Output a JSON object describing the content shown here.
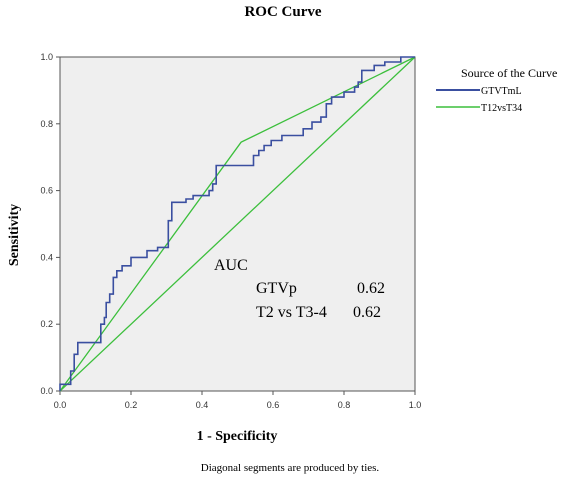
{
  "chart_data": {
    "type": "line",
    "title": "ROC Curve",
    "xlabel": "1 - Specificity",
    "ylabel": "Sensitivity",
    "xlim": [
      0,
      1
    ],
    "ylim": [
      0,
      1
    ],
    "xticks": [
      "0.0",
      "0.2",
      "0.4",
      "0.6",
      "0.8",
      "1.0"
    ],
    "yticks": [
      "0.0",
      "0.2",
      "0.4",
      "0.6",
      "0.8",
      "1.0"
    ],
    "grid": false,
    "legend": {
      "title": "Source of the Curve",
      "placement": "right"
    },
    "series": [
      {
        "name": "GTVTmL",
        "color": "#3a4fa0",
        "points": [
          [
            0,
            0
          ],
          [
            0,
            0.02
          ],
          [
            0.03,
            0.02
          ],
          [
            0.03,
            0.06
          ],
          [
            0.04,
            0.06
          ],
          [
            0.04,
            0.11
          ],
          [
            0.05,
            0.11
          ],
          [
            0.05,
            0.145
          ],
          [
            0.115,
            0.145
          ],
          [
            0.115,
            0.2
          ],
          [
            0.125,
            0.2
          ],
          [
            0.125,
            0.22
          ],
          [
            0.13,
            0.22
          ],
          [
            0.13,
            0.265
          ],
          [
            0.14,
            0.265
          ],
          [
            0.14,
            0.29
          ],
          [
            0.15,
            0.29
          ],
          [
            0.15,
            0.34
          ],
          [
            0.16,
            0.34
          ],
          [
            0.16,
            0.36
          ],
          [
            0.175,
            0.36
          ],
          [
            0.175,
            0.375
          ],
          [
            0.2,
            0.375
          ],
          [
            0.2,
            0.4
          ],
          [
            0.245,
            0.4
          ],
          [
            0.245,
            0.42
          ],
          [
            0.275,
            0.42
          ],
          [
            0.275,
            0.43
          ],
          [
            0.305,
            0.43
          ],
          [
            0.305,
            0.51
          ],
          [
            0.315,
            0.51
          ],
          [
            0.315,
            0.565
          ],
          [
            0.355,
            0.565
          ],
          [
            0.355,
            0.575
          ],
          [
            0.375,
            0.575
          ],
          [
            0.375,
            0.585
          ],
          [
            0.42,
            0.585
          ],
          [
            0.42,
            0.6
          ],
          [
            0.43,
            0.6
          ],
          [
            0.43,
            0.62
          ],
          [
            0.44,
            0.62
          ],
          [
            0.44,
            0.675
          ],
          [
            0.545,
            0.675
          ],
          [
            0.545,
            0.705
          ],
          [
            0.56,
            0.705
          ],
          [
            0.56,
            0.72
          ],
          [
            0.575,
            0.72
          ],
          [
            0.575,
            0.735
          ],
          [
            0.595,
            0.735
          ],
          [
            0.595,
            0.75
          ],
          [
            0.625,
            0.75
          ],
          [
            0.625,
            0.765
          ],
          [
            0.685,
            0.765
          ],
          [
            0.685,
            0.785
          ],
          [
            0.71,
            0.785
          ],
          [
            0.71,
            0.805
          ],
          [
            0.735,
            0.805
          ],
          [
            0.735,
            0.82
          ],
          [
            0.75,
            0.82
          ],
          [
            0.75,
            0.86
          ],
          [
            0.765,
            0.86
          ],
          [
            0.765,
            0.88
          ],
          [
            0.8,
            0.88
          ],
          [
            0.8,
            0.895
          ],
          [
            0.83,
            0.895
          ],
          [
            0.83,
            0.91
          ],
          [
            0.84,
            0.91
          ],
          [
            0.84,
            0.925
          ],
          [
            0.85,
            0.925
          ],
          [
            0.85,
            0.96
          ],
          [
            0.885,
            0.96
          ],
          [
            0.885,
            0.975
          ],
          [
            0.915,
            0.975
          ],
          [
            0.915,
            0.985
          ],
          [
            0.96,
            0.985
          ],
          [
            0.96,
            1
          ],
          [
            1,
            1
          ]
        ]
      },
      {
        "name": "T12vsT34",
        "color": "#3cbf3c",
        "points": [
          [
            0,
            0
          ],
          [
            0.51,
            0.745
          ],
          [
            1,
            1
          ]
        ]
      }
    ],
    "reference_line": {
      "color": "#3cbf3c",
      "points": [
        [
          0,
          0
        ],
        [
          1,
          1
        ]
      ]
    },
    "annotation": {
      "heading": "AUC",
      "rows": [
        {
          "label": "GTVp",
          "value": "0.62"
        },
        {
          "label": "T2 vs T3-4",
          "value": "0.62"
        }
      ]
    },
    "footnote": "Diagonal segments are produced by ties."
  }
}
